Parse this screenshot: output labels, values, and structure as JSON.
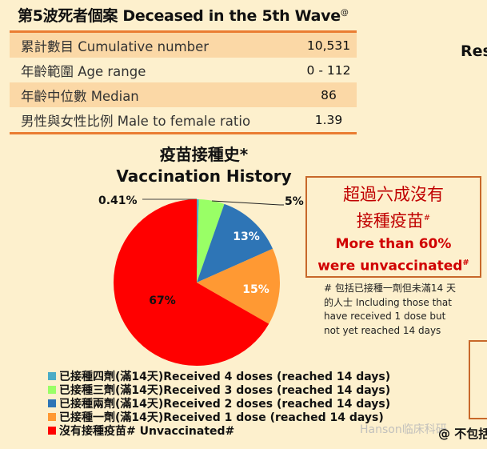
{
  "title": {
    "text": "第5波死者個案 Deceased in the 5th Wave",
    "sup": "@"
  },
  "table": [
    {
      "label": "累計數目 Cumulative number",
      "value": "10,531"
    },
    {
      "label": "年齡範圍 Age range",
      "value": "0 - 112"
    },
    {
      "label": "年齡中位數 Median",
      "value": "86"
    },
    {
      "label": "男性與女性比例 Male to female ratio",
      "value": "1.39"
    }
  ],
  "right_partial": "Res",
  "callout": {
    "zh_line1": "超過六成沒有",
    "zh_line2": "接種疫苗",
    "en_line1": "More than 60%",
    "en_line2": "were unvaccinated",
    "mark": "#"
  },
  "note": "# 包括已接種一劑但未滿14 天的人士 Including those that have received 1 dose but not yet reached 14 days",
  "footer_partial": "@ 不包括",
  "watermark": "Hanson临床科研",
  "chart_data": {
    "type": "pie",
    "title_zh": "疫苗接種史*",
    "title_en": "Vaccination History",
    "slices": [
      {
        "name": "已接種四劑(滿14天)Received 4 doses (reached 14 days)",
        "value": 0.41,
        "label": "0.41%",
        "color": "#4bacc6"
      },
      {
        "name": "已接種三劑(滿14天)Received 3 doses (reached 14 days)",
        "value": 5,
        "label": "5%",
        "color": "#99ff66"
      },
      {
        "name": "已接種兩劑(滿14天)Received 2 doses (reached 14 days)",
        "value": 13,
        "label": "13%",
        "color": "#2e75b6"
      },
      {
        "name": "已接種一劑(滿14天)Received 1 dose (reached 14 days)",
        "value": 15,
        "label": "15%",
        "color": "#ff9933"
      },
      {
        "name": "沒有接種疫苗# Unvaccinated#",
        "value": 67,
        "label": "67%",
        "color": "#ff0000"
      }
    ],
    "legend_position": "bottom-left"
  }
}
